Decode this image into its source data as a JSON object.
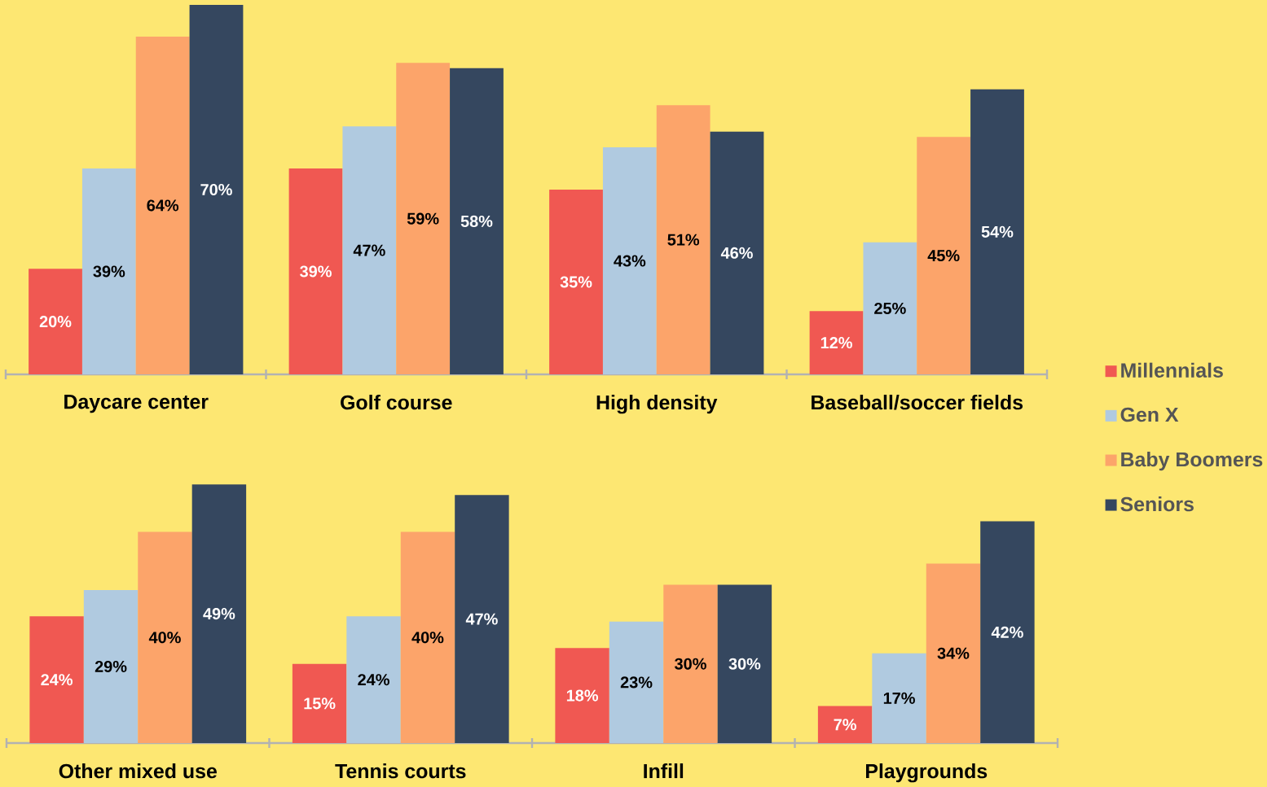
{
  "chart_data": [
    {
      "type": "bar",
      "categories": [
        "Daycare center",
        "Golf course",
        "High density",
        "Baseball/soccer fields"
      ],
      "legend": "right",
      "series": [
        {
          "name": "Millennials",
          "color": "#f05852",
          "values": [
            20,
            39,
            35,
            12
          ],
          "value_labels": [
            "20%",
            "39%",
            "35%",
            "12%"
          ]
        },
        {
          "name": "Gen X",
          "color": "#b0cae0",
          "values": [
            39,
            47,
            43,
            25
          ],
          "value_labels": [
            "39%",
            "47%",
            "43%",
            "25%"
          ]
        },
        {
          "name": "Baby Boomers",
          "color": "#fca46a",
          "values": [
            64,
            59,
            51,
            45
          ],
          "value_labels": [
            "64%",
            "59%",
            "51%",
            "45%"
          ]
        },
        {
          "name": "Seniors",
          "color": "#35475f",
          "values": [
            70,
            58,
            46,
            54
          ],
          "value_labels": [
            "70%",
            "58%",
            "46%",
            "54%"
          ]
        }
      ]
    },
    {
      "type": "bar",
      "categories": [
        "Other mixed use",
        "Tennis courts",
        "Infill",
        "Playgrounds"
      ],
      "series": [
        {
          "color": "#f05852",
          "values": [
            24,
            15,
            18,
            7
          ],
          "value_labels": [
            "24%",
            "15%",
            "18%",
            "7%"
          ]
        },
        {
          "color": "#b0cae0",
          "values": [
            29,
            24,
            23,
            17
          ],
          "value_labels": [
            "29%",
            "24%",
            "23%",
            "17%"
          ]
        },
        {
          "color": "#fca46a",
          "values": [
            40,
            40,
            30,
            34
          ],
          "value_labels": [
            "40%",
            "40%",
            "30%",
            "34%"
          ]
        },
        {
          "color": "#35475f",
          "values": [
            49,
            47,
            30,
            42
          ],
          "value_labels": [
            "49%",
            "47%",
            "30%",
            "42%"
          ]
        }
      ]
    }
  ]
}
